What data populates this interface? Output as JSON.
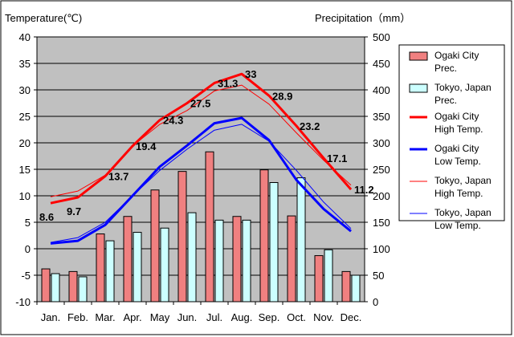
{
  "chart_data": {
    "type": "bar+line",
    "y_left_label": "Temperature(℃)",
    "y_right_label": "Precipitation（mm）",
    "ylim_left": [
      -10,
      40
    ],
    "ylim_right": [
      0,
      500
    ],
    "yticks_left": [
      40,
      35,
      30,
      25,
      20,
      15,
      10,
      5,
      0,
      -5,
      -10
    ],
    "yticks_right": [
      500,
      450,
      400,
      350,
      300,
      250,
      200,
      150,
      100,
      50,
      0
    ],
    "categories": [
      "Jan.",
      "Feb.",
      "Mar.",
      "Apr.",
      "May",
      "Jun.",
      "Jul.",
      "Aug.",
      "Sep.",
      "Oct.",
      "Nov.",
      "Dec."
    ],
    "bar_series": [
      {
        "name": "Ogaki City Prec.",
        "legend": [
          "Ogaki City",
          "Prec."
        ],
        "color": "#f08080",
        "values": [
          62,
          57,
          128,
          161,
          211,
          246,
          283,
          161,
          249,
          162,
          87,
          57
        ]
      },
      {
        "name": "Tokyo, Japan Prec.",
        "legend": [
          "Tokyo, Japan",
          "Prec."
        ],
        "color": "#ccffff",
        "values": [
          53,
          47,
          115,
          131,
          139,
          168,
          154,
          154,
          225,
          234,
          98,
          50
        ]
      }
    ],
    "line_series": [
      {
        "name": "Ogaki City High Temp.",
        "legend": [
          "Ogaki City",
          "High Temp."
        ],
        "color": "#ff0000",
        "width": 3,
        "values": [
          8.6,
          9.7,
          13.7,
          19.4,
          24.3,
          27.5,
          31.3,
          33.0,
          28.9,
          23.2,
          17.1,
          11.2
        ]
      },
      {
        "name": "Ogaki City Low Temp.",
        "legend": [
          "Ogaki City",
          "Low Temp."
        ],
        "color": "#0000ff",
        "width": 3,
        "values": [
          1.0,
          1.5,
          4.5,
          10.0,
          15.5,
          19.5,
          23.7,
          24.7,
          20.5,
          13.0,
          7.5,
          3.3
        ]
      },
      {
        "name": "Tokyo, Japan High Temp.",
        "legend": [
          "Tokyo, Japan",
          "High Temp."
        ],
        "color": "#ff0000",
        "width": 1,
        "values": [
          9.8,
          10.9,
          13.9,
          19.4,
          23.5,
          26.1,
          29.8,
          30.9,
          27.3,
          21.9,
          16.7,
          12.0
        ]
      },
      {
        "name": "Tokyo, Japan Low Temp.",
        "legend": [
          "Tokyo, Japan",
          "Low Temp."
        ],
        "color": "#0000ff",
        "width": 1,
        "values": [
          1.2,
          2.1,
          5.0,
          10.0,
          14.8,
          18.8,
          22.4,
          23.5,
          20.3,
          14.8,
          8.8,
          3.8
        ]
      }
    ],
    "data_labels": [
      "8.6",
      "9.7",
      "13.7",
      "19.4",
      "24.3",
      "27.5",
      "31.3",
      "33",
      "28.9",
      "23.2",
      "17.1",
      "11.2"
    ],
    "legend_position": "right"
  }
}
